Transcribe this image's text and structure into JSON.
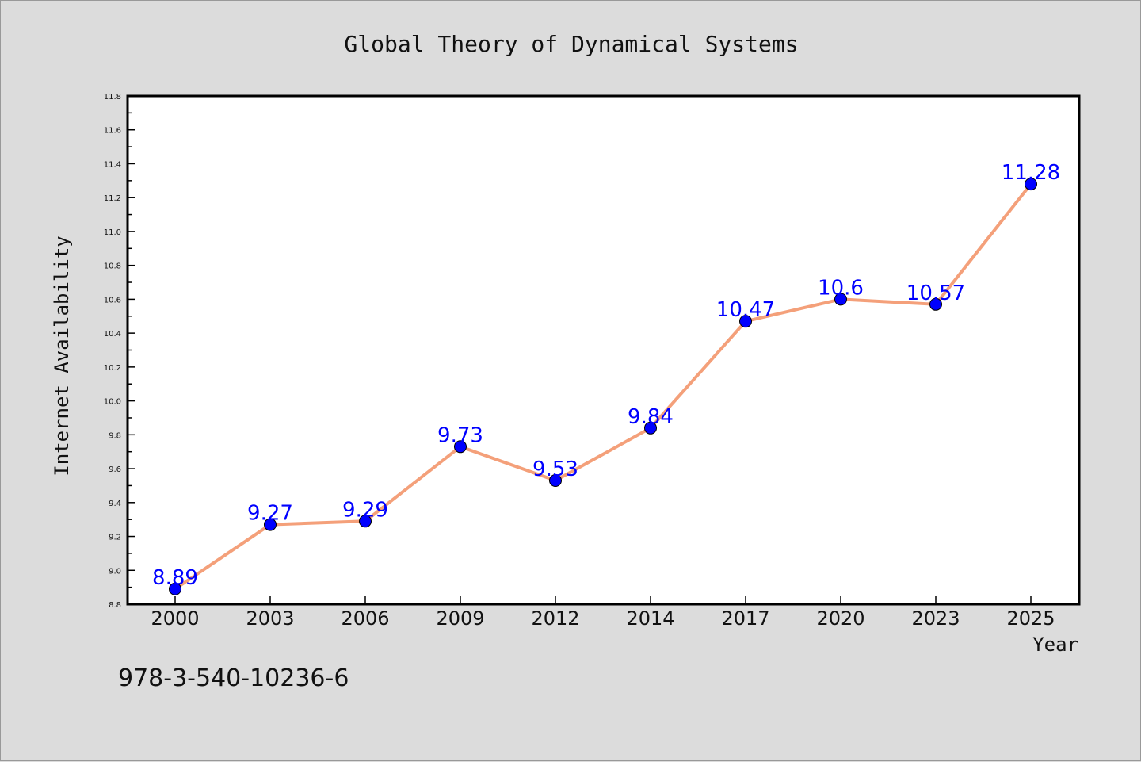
{
  "chart_data": {
    "type": "line",
    "title": "Global Theory of Dynamical Systems",
    "xlabel": "Year",
    "ylabel": "Internet Availability",
    "categories": [
      "2000",
      "2003",
      "2006",
      "2009",
      "2012",
      "2014",
      "2017",
      "2020",
      "2023",
      "2025"
    ],
    "series": [
      {
        "values": [
          8.89,
          9.27,
          9.29,
          9.73,
          9.53,
          9.84,
          10.47,
          10.6,
          10.57,
          11.28
        ],
        "labels": [
          "8.89",
          "9.27",
          "9.29",
          "9.73",
          "9.53",
          "9.84",
          "10.47",
          "10.6",
          "10.57",
          "11.28"
        ],
        "line_color": "#f4a07a",
        "marker_color": "#0000ff"
      }
    ],
    "ylim": [
      8.8,
      11.8
    ],
    "yticks": [
      "8.8",
      "9.0",
      "9.2",
      "9.4",
      "9.6",
      "9.8",
      "10.0",
      "10.2",
      "10.4",
      "10.6",
      "10.8",
      "11.0",
      "11.2",
      "11.4",
      "11.6",
      "11.8"
    ],
    "grid": false,
    "data_label_color": "#0000ff",
    "background": "#dcdcdc",
    "plot_background": "#ffffff"
  },
  "footer": {
    "isbn": "978-3-540-10236-6"
  }
}
